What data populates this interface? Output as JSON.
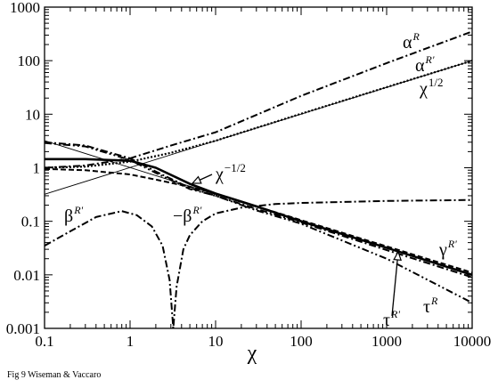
{
  "caption": "Fig 9  Wiseman & Vaccaro",
  "chart_data": {
    "type": "line",
    "title": "",
    "xlabel": "χ",
    "ylabel": "",
    "xscale": "log",
    "yscale": "log",
    "xlim": [
      0.1,
      10000
    ],
    "ylim": [
      0.001,
      1000
    ],
    "xticks": [
      0.1,
      1,
      10,
      100,
      1000,
      10000
    ],
    "xtick_labels": [
      "0.1",
      "1",
      "10",
      "100",
      "1000",
      "10000"
    ],
    "yticks": [
      0.001,
      0.01,
      0.1,
      1,
      10,
      100,
      1000
    ],
    "ytick_labels": [
      "0.001",
      "0.01",
      "0.1",
      "1",
      "10",
      "100",
      "1000"
    ],
    "grid": false,
    "series": [
      {
        "name": "αR",
        "style": "dash-dot",
        "x": [
          0.1,
          0.3,
          1,
          3,
          10,
          100,
          1000,
          10000
        ],
        "y": [
          1.0,
          1.1,
          1.5,
          2.6,
          4.6,
          22,
          90,
          350
        ]
      },
      {
        "name": "αR'",
        "style": "dotted",
        "x": [
          0.1,
          0.3,
          1,
          3,
          10,
          100,
          1000,
          10000
        ],
        "y": [
          1.0,
          1.05,
          1.3,
          1.9,
          3.2,
          10.2,
          32,
          100
        ]
      },
      {
        "name": "χ^1/2",
        "style": "thin solid",
        "x": [
          0.1,
          10000
        ],
        "y": [
          0.32,
          100
        ]
      },
      {
        "name": "χ^-1/2",
        "style": "thin solid",
        "x": [
          0.1,
          10000
        ],
        "y": [
          3.2,
          0.01
        ]
      },
      {
        "name": "γR'",
        "style": "thick solid",
        "x": [
          0.1,
          0.3,
          1,
          2,
          5,
          10,
          30,
          100,
          1000,
          10000
        ],
        "y": [
          1.45,
          1.45,
          1.35,
          1.0,
          0.5,
          0.33,
          0.19,
          0.1,
          0.032,
          0.01
        ]
      },
      {
        "name": "γR'",
        "style": "dashed",
        "x": [
          0.1,
          0.3,
          1,
          2,
          5,
          10,
          30,
          100,
          1000,
          10000
        ],
        "y": [
          0.95,
          0.9,
          0.75,
          0.6,
          0.44,
          0.33,
          0.19,
          0.105,
          0.034,
          0.011
        ]
      },
      {
        "name": "τR'",
        "style": "dash-dot",
        "x": [
          0.1,
          0.3,
          1,
          2,
          5,
          10,
          30,
          100,
          1000,
          10000
        ],
        "y": [
          3.0,
          2.6,
          1.5,
          0.85,
          0.42,
          0.3,
          0.17,
          0.095,
          0.029,
          0.009
        ]
      },
      {
        "name": "τR",
        "style": "dash-dot-dot",
        "x": [
          0.1,
          0.3,
          1,
          2,
          5,
          10,
          30,
          100,
          1000,
          10000
        ],
        "y": [
          2.9,
          2.5,
          1.4,
          0.8,
          0.4,
          0.3,
          0.16,
          0.09,
          0.02,
          0.003
        ]
      },
      {
        "name": "βR'",
        "style": "dash-dot",
        "x": [
          0.1,
          0.2,
          0.4,
          0.8,
          1.2,
          1.8,
          2.4,
          2.9,
          3.2,
          3.5,
          4.2,
          5,
          7,
          10,
          20,
          50,
          100,
          1000,
          10000
        ],
        "y": [
          0.035,
          0.065,
          0.12,
          0.155,
          0.13,
          0.08,
          0.035,
          0.008,
          0.001,
          0.006,
          0.03,
          0.055,
          0.1,
          0.14,
          0.18,
          0.21,
          0.22,
          0.24,
          0.25
        ]
      }
    ],
    "annotations": [
      {
        "text": "α",
        "sup": "R"
      },
      {
        "text": "α",
        "sup": "R'"
      },
      {
        "text": "χ",
        "sup": "1/2"
      },
      {
        "text": "χ",
        "sup": "−1/2"
      },
      {
        "text": "β",
        "sup": "R'"
      },
      {
        "text": "−β",
        "sup": "R'"
      },
      {
        "text": "γ",
        "sup": "R'"
      },
      {
        "text": "τ",
        "sup": "R'"
      },
      {
        "text": "τ",
        "sup": "R"
      }
    ]
  }
}
